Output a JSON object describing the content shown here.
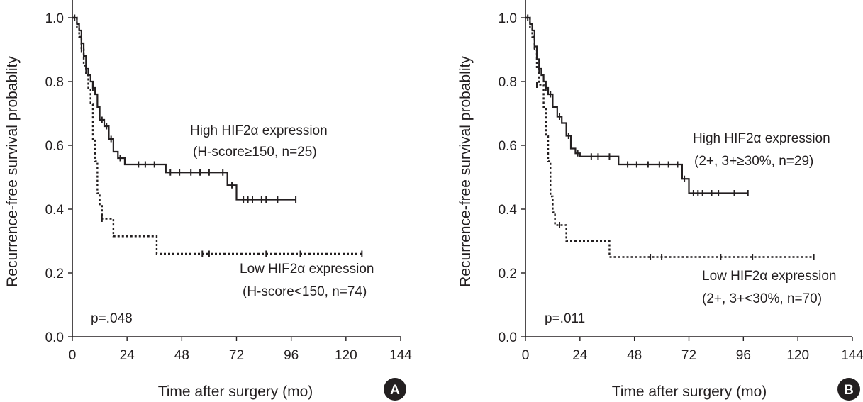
{
  "chart_data": [
    {
      "type": "line",
      "panel_label": "A",
      "xlabel": "Time after surgery (mo)",
      "ylabel": "Recurrence-free survival probablity",
      "xlim": [
        0,
        144
      ],
      "ylim": [
        0,
        1
      ],
      "xticks": [
        "0",
        "24",
        "48",
        "72",
        "96",
        "120",
        "144"
      ],
      "yticks": [
        "0.0",
        "0.2",
        "0.4",
        "0.6",
        "0.8",
        "1.0"
      ],
      "pvalue": "p=.048",
      "series": [
        {
          "name": "High HIF2α expression",
          "subtitle": "(H-score≥150, n=25)",
          "style": "solid",
          "steps": [
            [
              0,
              1.0
            ],
            [
              2,
              0.98
            ],
            [
              3,
              0.96
            ],
            [
              4,
              0.92
            ],
            [
              5,
              0.88
            ],
            [
              6,
              0.84
            ],
            [
              7,
              0.82
            ],
            [
              8,
              0.8
            ],
            [
              9,
              0.78
            ],
            [
              10,
              0.76
            ],
            [
              11,
              0.72
            ],
            [
              12,
              0.68
            ],
            [
              14,
              0.66
            ],
            [
              16,
              0.62
            ],
            [
              18,
              0.58
            ],
            [
              20,
              0.56
            ],
            [
              23,
              0.54
            ],
            [
              41,
              0.515
            ],
            [
              68,
              0.475
            ],
            [
              72,
              0.43
            ],
            [
              98,
              0.43
            ]
          ],
          "censored": [
            [
              1,
              1.0
            ],
            [
              4,
              0.92
            ],
            [
              5,
              0.88
            ],
            [
              6,
              0.84
            ],
            [
              9,
              0.78
            ],
            [
              13,
              0.68
            ],
            [
              15,
              0.66
            ],
            [
              17,
              0.62
            ],
            [
              21,
              0.56
            ],
            [
              29,
              0.54
            ],
            [
              32,
              0.54
            ],
            [
              36,
              0.54
            ],
            [
              43,
              0.515
            ],
            [
              47,
              0.515
            ],
            [
              52,
              0.515
            ],
            [
              56,
              0.515
            ],
            [
              60,
              0.515
            ],
            [
              66,
              0.515
            ],
            [
              70,
              0.475
            ],
            [
              75,
              0.43
            ],
            [
              77,
              0.43
            ],
            [
              79,
              0.43
            ],
            [
              83,
              0.43
            ],
            [
              85,
              0.43
            ],
            [
              90,
              0.43
            ],
            [
              98,
              0.43
            ]
          ]
        },
        {
          "name": "Low HIF2α expression",
          "subtitle": "(H-score<150, n=74)",
          "style": "dashed",
          "steps": [
            [
              0,
              1.0
            ],
            [
              2,
              0.97
            ],
            [
              3,
              0.94
            ],
            [
              4,
              0.9
            ],
            [
              5,
              0.85
            ],
            [
              6,
              0.82
            ],
            [
              7,
              0.78
            ],
            [
              8,
              0.73
            ],
            [
              9,
              0.62
            ],
            [
              10,
              0.55
            ],
            [
              11,
              0.45
            ],
            [
              12,
              0.41
            ],
            [
              13,
              0.37
            ],
            [
              18,
              0.315
            ],
            [
              37,
              0.26
            ],
            [
              127,
              0.26
            ]
          ],
          "censored": [
            [
              4,
              0.9
            ],
            [
              13,
              0.37
            ],
            [
              57,
              0.26
            ],
            [
              60,
              0.26
            ],
            [
              85,
              0.26
            ],
            [
              100,
              0.26
            ],
            [
              127,
              0.26
            ]
          ]
        }
      ]
    },
    {
      "type": "line",
      "panel_label": "B",
      "xlabel": "Time after surgery (mo)",
      "ylabel": "Recurrence-free survival probablity",
      "xlim": [
        0,
        144
      ],
      "ylim": [
        0,
        1
      ],
      "xticks": [
        "0",
        "24",
        "48",
        "72",
        "96",
        "120",
        "144"
      ],
      "yticks": [
        "0.0",
        "0.2",
        "0.4",
        "0.6",
        "0.8",
        "1.0"
      ],
      "pvalue": "p=.011",
      "series": [
        {
          "name": "High HIF2α expression",
          "subtitle": "(2+, 3+≥30%, n=29)",
          "style": "solid",
          "steps": [
            [
              0,
              1.0
            ],
            [
              2,
              0.98
            ],
            [
              3,
              0.96
            ],
            [
              4,
              0.91
            ],
            [
              5,
              0.87
            ],
            [
              6,
              0.84
            ],
            [
              7,
              0.82
            ],
            [
              8,
              0.8
            ],
            [
              9,
              0.78
            ],
            [
              10,
              0.76
            ],
            [
              12,
              0.72
            ],
            [
              14,
              0.69
            ],
            [
              16,
              0.67
            ],
            [
              18,
              0.63
            ],
            [
              20,
              0.59
            ],
            [
              22,
              0.575
            ],
            [
              24,
              0.565
            ],
            [
              41,
              0.54
            ],
            [
              69,
              0.495
            ],
            [
              72,
              0.45
            ],
            [
              98,
              0.45
            ]
          ],
          "censored": [
            [
              1,
              1.0
            ],
            [
              4,
              0.91
            ],
            [
              6,
              0.84
            ],
            [
              9,
              0.78
            ],
            [
              11,
              0.76
            ],
            [
              15,
              0.69
            ],
            [
              19,
              0.63
            ],
            [
              23,
              0.575
            ],
            [
              29,
              0.565
            ],
            [
              32,
              0.565
            ],
            [
              37,
              0.565
            ],
            [
              45,
              0.54
            ],
            [
              49,
              0.54
            ],
            [
              54,
              0.54
            ],
            [
              59,
              0.54
            ],
            [
              63,
              0.54
            ],
            [
              67,
              0.54
            ],
            [
              70,
              0.495
            ],
            [
              74,
              0.45
            ],
            [
              76,
              0.45
            ],
            [
              78,
              0.45
            ],
            [
              82,
              0.45
            ],
            [
              85,
              0.45
            ],
            [
              92,
              0.45
            ],
            [
              98,
              0.45
            ]
          ]
        },
        {
          "name": "Low HIF2α expression",
          "subtitle": "(2+, 3+<30%, n=70)",
          "style": "dashed",
          "steps": [
            [
              0,
              1.0
            ],
            [
              2,
              0.97
            ],
            [
              3,
              0.94
            ],
            [
              4,
              0.9
            ],
            [
              5,
              0.84
            ],
            [
              6,
              0.79
            ],
            [
              8,
              0.72
            ],
            [
              9,
              0.63
            ],
            [
              10,
              0.55
            ],
            [
              11,
              0.44
            ],
            [
              12,
              0.39
            ],
            [
              13,
              0.35
            ],
            [
              18,
              0.3
            ],
            [
              37,
              0.25
            ],
            [
              127,
              0.25
            ]
          ],
          "censored": [
            [
              5,
              0.79
            ],
            [
              15,
              0.35
            ],
            [
              55,
              0.25
            ],
            [
              60,
              0.25
            ],
            [
              86,
              0.25
            ],
            [
              100,
              0.25
            ],
            [
              127,
              0.25
            ]
          ]
        }
      ]
    }
  ]
}
